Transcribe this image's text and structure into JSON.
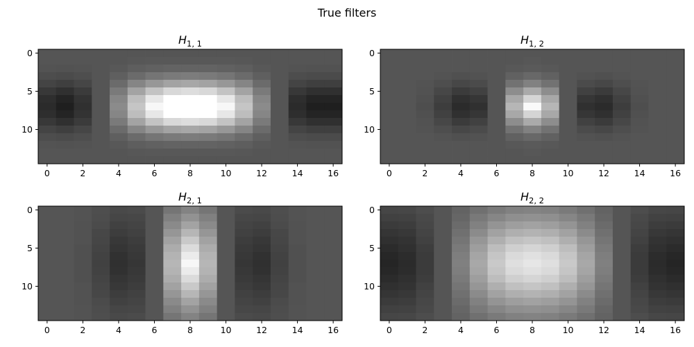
{
  "figure": {
    "title": "True filters"
  },
  "colormap": {
    "name": "gray",
    "low": "#000000",
    "high": "#ffffff"
  },
  "chart_data": [
    {
      "type": "heatmap",
      "title_base": "H",
      "title_sub": "1, 1",
      "xlim": [
        -0.5,
        16.5
      ],
      "ylim": [
        14.5,
        -0.5
      ],
      "xticks": [
        0,
        2,
        4,
        6,
        8,
        10,
        12,
        14,
        16
      ],
      "yticks": [
        0,
        5,
        10
      ],
      "vrange": [
        -0.5,
        1.0
      ],
      "values": [
        [
          0,
          0,
          0,
          0,
          0,
          0,
          0,
          0,
          0,
          0,
          0,
          0,
          0,
          0,
          0,
          0,
          0
        ],
        [
          0,
          0,
          0,
          0,
          0,
          0.01,
          0.02,
          0.02,
          0.02,
          0.02,
          0.02,
          0.01,
          0,
          0,
          0,
          0,
          0
        ],
        [
          -0.01,
          -0.02,
          -0.01,
          0,
          0.02,
          0.05,
          0.07,
          0.08,
          0.08,
          0.08,
          0.07,
          0.05,
          0.02,
          0,
          -0.01,
          -0.02,
          -0.02
        ],
        [
          -0.05,
          -0.06,
          -0.04,
          0,
          0.06,
          0.13,
          0.19,
          0.22,
          0.23,
          0.22,
          0.19,
          0.13,
          0.06,
          0,
          -0.05,
          -0.06,
          -0.06
        ],
        [
          -0.1,
          -0.13,
          -0.09,
          0,
          0.13,
          0.28,
          0.39,
          0.46,
          0.48,
          0.46,
          0.39,
          0.28,
          0.13,
          0,
          -0.1,
          -0.13,
          -0.13
        ],
        [
          -0.17,
          -0.22,
          -0.15,
          0,
          0.22,
          0.46,
          0.65,
          0.77,
          0.8,
          0.77,
          0.65,
          0.46,
          0.22,
          0,
          -0.17,
          -0.22,
          -0.22
        ],
        [
          -0.23,
          -0.29,
          -0.2,
          0,
          0.29,
          0.61,
          0.86,
          1.0,
          1.0,
          1.0,
          0.86,
          0.61,
          0.29,
          0,
          -0.23,
          -0.29,
          -0.29
        ],
        [
          -0.25,
          -0.32,
          -0.22,
          0,
          0.32,
          0.66,
          0.95,
          1.0,
          1.0,
          1.0,
          0.95,
          0.66,
          0.32,
          0,
          -0.25,
          -0.32,
          -0.32
        ],
        [
          -0.23,
          -0.29,
          -0.2,
          0,
          0.29,
          0.61,
          0.86,
          1.0,
          1.0,
          1.0,
          0.86,
          0.61,
          0.29,
          0,
          -0.23,
          -0.29,
          -0.29
        ],
        [
          -0.17,
          -0.22,
          -0.15,
          0,
          0.22,
          0.46,
          0.65,
          0.77,
          0.8,
          0.77,
          0.65,
          0.46,
          0.22,
          0,
          -0.17,
          -0.22,
          -0.22
        ],
        [
          -0.1,
          -0.13,
          -0.09,
          0,
          0.13,
          0.28,
          0.39,
          0.46,
          0.48,
          0.46,
          0.39,
          0.28,
          0.13,
          0,
          -0.1,
          -0.13,
          -0.13
        ],
        [
          -0.05,
          -0.06,
          -0.04,
          0,
          0.06,
          0.13,
          0.19,
          0.22,
          0.23,
          0.22,
          0.19,
          0.13,
          0.06,
          0,
          -0.05,
          -0.06,
          -0.06
        ],
        [
          -0.01,
          -0.02,
          -0.01,
          0,
          0.02,
          0.05,
          0.07,
          0.08,
          0.08,
          0.08,
          0.07,
          0.05,
          0.02,
          0,
          -0.01,
          -0.02,
          -0.02
        ],
        [
          0,
          0,
          0,
          0,
          0,
          0.01,
          0.02,
          0.02,
          0.02,
          0.02,
          0.02,
          0.01,
          0,
          0,
          0,
          0,
          0
        ],
        [
          0,
          0,
          0,
          0,
          0,
          0,
          0,
          0,
          0,
          0,
          0,
          0,
          0,
          0,
          0,
          0,
          0
        ]
      ]
    },
    {
      "type": "heatmap",
      "title_base": "H",
      "title_sub": "1, 2",
      "xlim": [
        -0.5,
        16.5
      ],
      "ylim": [
        14.5,
        -0.5
      ],
      "xticks": [
        0,
        2,
        4,
        6,
        8,
        10,
        12,
        14,
        16
      ],
      "yticks": [
        0,
        5,
        10
      ],
      "vrange": [
        -0.5,
        1.0
      ],
      "values": [
        [
          0,
          0,
          0,
          0,
          0,
          0,
          0,
          0,
          0,
          0,
          0,
          0,
          0,
          0,
          0,
          0,
          0
        ],
        [
          0,
          0,
          0,
          0,
          0,
          0,
          0,
          0,
          0.01,
          0,
          0,
          0,
          0,
          0,
          0,
          0,
          0
        ],
        [
          0,
          0,
          0,
          0,
          0,
          0,
          0,
          0.02,
          0.03,
          0.02,
          0,
          0,
          0,
          0,
          0,
          0,
          0
        ],
        [
          0,
          0,
          0,
          -0.01,
          -0.03,
          -0.02,
          0,
          0.07,
          0.11,
          0.07,
          0,
          -0.02,
          -0.03,
          -0.01,
          0,
          0,
          0
        ],
        [
          0,
          0,
          -0.01,
          -0.04,
          -0.08,
          -0.06,
          0,
          0.17,
          0.26,
          0.17,
          0,
          -0.06,
          -0.08,
          -0.04,
          -0.01,
          0,
          0
        ],
        [
          0,
          0,
          -0.02,
          -0.08,
          -0.15,
          -0.12,
          0,
          0.33,
          0.5,
          0.33,
          0,
          -0.12,
          -0.15,
          -0.08,
          -0.02,
          0,
          0
        ],
        [
          0,
          0,
          -0.03,
          -0.12,
          -0.22,
          -0.18,
          0,
          0.49,
          0.75,
          0.49,
          0,
          -0.18,
          -0.22,
          -0.12,
          -0.03,
          0,
          0
        ],
        [
          0,
          0,
          -0.04,
          -0.14,
          -0.25,
          -0.22,
          0,
          0.57,
          0.97,
          0.57,
          0,
          -0.22,
          -0.25,
          -0.14,
          -0.04,
          0,
          0
        ],
        [
          0,
          0,
          -0.03,
          -0.12,
          -0.22,
          -0.18,
          0,
          0.49,
          0.75,
          0.49,
          0,
          -0.18,
          -0.22,
          -0.12,
          -0.03,
          0,
          0
        ],
        [
          0,
          0,
          -0.02,
          -0.08,
          -0.15,
          -0.12,
          0,
          0.33,
          0.5,
          0.33,
          0,
          -0.12,
          -0.15,
          -0.08,
          -0.02,
          0,
          0
        ],
        [
          0,
          0,
          -0.01,
          -0.04,
          -0.08,
          -0.06,
          0,
          0.17,
          0.26,
          0.17,
          0,
          -0.06,
          -0.08,
          -0.04,
          -0.01,
          0,
          0
        ],
        [
          0,
          0,
          0,
          -0.01,
          -0.03,
          -0.02,
          0,
          0.07,
          0.11,
          0.07,
          0,
          -0.02,
          -0.03,
          -0.01,
          0,
          0,
          0
        ],
        [
          0,
          0,
          0,
          0,
          0,
          0,
          0,
          0.02,
          0.03,
          0.02,
          0,
          0,
          0,
          0,
          0,
          0,
          0
        ],
        [
          0,
          0,
          0,
          0,
          0,
          0,
          0,
          0,
          0.01,
          0,
          0,
          0,
          0,
          0,
          0,
          0,
          0
        ],
        [
          0,
          0,
          0,
          0,
          0,
          0,
          0,
          0,
          0,
          0,
          0,
          0,
          0,
          0,
          0,
          0,
          0
        ]
      ]
    },
    {
      "type": "heatmap",
      "title_base": "H",
      "title_sub": "2, 1",
      "xlim": [
        -0.5,
        16.5
      ],
      "ylim": [
        14.5,
        -0.5
      ],
      "xticks": [
        0,
        2,
        4,
        6,
        8,
        10,
        12,
        14,
        16
      ],
      "yticks": [
        0,
        5,
        10
      ],
      "vrange": [
        -0.5,
        1.0
      ],
      "values": [
        [
          0,
          0,
          -0.01,
          -0.04,
          -0.07,
          -0.06,
          0,
          0.19,
          0.27,
          0.19,
          0,
          -0.06,
          -0.07,
          -0.04,
          -0.01,
          0,
          0
        ],
        [
          0,
          0,
          -0.01,
          -0.05,
          -0.09,
          -0.08,
          0,
          0.25,
          0.36,
          0.25,
          0,
          -0.08,
          -0.09,
          -0.05,
          -0.01,
          0,
          0
        ],
        [
          0,
          0,
          -0.02,
          -0.06,
          -0.12,
          -0.1,
          0,
          0.31,
          0.46,
          0.31,
          0,
          -0.1,
          -0.12,
          -0.06,
          -0.02,
          0,
          0
        ],
        [
          0,
          0,
          -0.02,
          -0.08,
          -0.14,
          -0.12,
          0,
          0.38,
          0.57,
          0.38,
          0,
          -0.12,
          -0.14,
          -0.08,
          -0.02,
          0,
          0
        ],
        [
          0,
          0,
          -0.02,
          -0.09,
          -0.17,
          -0.14,
          0,
          0.45,
          0.68,
          0.45,
          0,
          -0.14,
          -0.17,
          -0.09,
          -0.02,
          0,
          0
        ],
        [
          0,
          0,
          -0.03,
          -0.1,
          -0.19,
          -0.16,
          0,
          0.51,
          0.79,
          0.51,
          0,
          -0.16,
          -0.19,
          -0.1,
          -0.03,
          0,
          0
        ],
        [
          0,
          0,
          -0.03,
          -0.11,
          -0.21,
          -0.17,
          0,
          0.55,
          0.88,
          0.55,
          0,
          -0.17,
          -0.21,
          -0.11,
          -0.03,
          0,
          0
        ],
        [
          0,
          0,
          -0.03,
          -0.12,
          -0.22,
          -0.18,
          0,
          0.57,
          0.95,
          0.57,
          0,
          -0.18,
          -0.22,
          -0.12,
          -0.03,
          0,
          0
        ],
        [
          0,
          0,
          -0.03,
          -0.11,
          -0.21,
          -0.17,
          0,
          0.55,
          0.88,
          0.55,
          0,
          -0.17,
          -0.21,
          -0.11,
          -0.03,
          0,
          0
        ],
        [
          0,
          0,
          -0.03,
          -0.1,
          -0.19,
          -0.16,
          0,
          0.51,
          0.79,
          0.51,
          0,
          -0.16,
          -0.19,
          -0.1,
          -0.03,
          0,
          0
        ],
        [
          0,
          0,
          -0.02,
          -0.09,
          -0.17,
          -0.14,
          0,
          0.45,
          0.68,
          0.45,
          0,
          -0.14,
          -0.17,
          -0.09,
          -0.02,
          0,
          0
        ],
        [
          0,
          0,
          -0.02,
          -0.08,
          -0.14,
          -0.12,
          0,
          0.38,
          0.57,
          0.38,
          0,
          -0.12,
          -0.14,
          -0.08,
          -0.02,
          0,
          0
        ],
        [
          0,
          0,
          -0.02,
          -0.06,
          -0.12,
          -0.1,
          0,
          0.31,
          0.46,
          0.31,
          0,
          -0.1,
          -0.12,
          -0.06,
          -0.02,
          0,
          0
        ],
        [
          0,
          0,
          -0.01,
          -0.05,
          -0.09,
          -0.08,
          0,
          0.25,
          0.36,
          0.25,
          0,
          -0.08,
          -0.09,
          -0.05,
          -0.01,
          0,
          0
        ],
        [
          0,
          0,
          -0.01,
          -0.04,
          -0.07,
          -0.06,
          0,
          0.19,
          0.27,
          0.19,
          0,
          -0.06,
          -0.07,
          -0.04,
          -0.01,
          0,
          0
        ]
      ]
    },
    {
      "type": "heatmap",
      "title_base": "H",
      "title_sub": "2, 2",
      "xlim": [
        -0.5,
        16.5
      ],
      "ylim": [
        14.5,
        -0.5
      ],
      "xticks": [
        0,
        2,
        4,
        6,
        8,
        10,
        12,
        14,
        16
      ],
      "yticks": [
        0,
        5,
        10
      ],
      "vrange": [
        -0.5,
        1.0
      ],
      "values": [
        [
          -0.09,
          -0.08,
          -0.05,
          0,
          0.08,
          0.16,
          0.22,
          0.26,
          0.27,
          0.26,
          0.22,
          0.16,
          0.08,
          0,
          -0.05,
          -0.08,
          -0.09
        ],
        [
          -0.12,
          -0.11,
          -0.07,
          0,
          0.1,
          0.21,
          0.29,
          0.34,
          0.35,
          0.34,
          0.29,
          0.21,
          0.1,
          0,
          -0.07,
          -0.11,
          -0.12
        ],
        [
          -0.15,
          -0.14,
          -0.08,
          0,
          0.13,
          0.26,
          0.37,
          0.43,
          0.45,
          0.43,
          0.37,
          0.26,
          0.13,
          0,
          -0.08,
          -0.14,
          -0.15
        ],
        [
          -0.19,
          -0.17,
          -0.1,
          0,
          0.16,
          0.32,
          0.45,
          0.53,
          0.55,
          0.53,
          0.45,
          0.32,
          0.16,
          0,
          -0.1,
          -0.17,
          -0.19
        ],
        [
          -0.22,
          -0.2,
          -0.12,
          0,
          0.19,
          0.38,
          0.53,
          0.63,
          0.66,
          0.63,
          0.53,
          0.38,
          0.19,
          0,
          -0.12,
          -0.2,
          -0.22
        ],
        [
          -0.25,
          -0.22,
          -0.14,
          0,
          0.22,
          0.43,
          0.61,
          0.72,
          0.75,
          0.72,
          0.61,
          0.43,
          0.22,
          0,
          -0.14,
          -0.22,
          -0.25
        ],
        [
          -0.27,
          -0.24,
          -0.15,
          0,
          0.24,
          0.47,
          0.66,
          0.78,
          0.82,
          0.78,
          0.66,
          0.47,
          0.24,
          0,
          -0.15,
          -0.24,
          -0.27
        ],
        [
          -0.28,
          -0.25,
          -0.15,
          0,
          0.25,
          0.49,
          0.68,
          0.81,
          0.85,
          0.81,
          0.68,
          0.49,
          0.25,
          0,
          -0.15,
          -0.25,
          -0.28
        ],
        [
          -0.27,
          -0.24,
          -0.15,
          0,
          0.24,
          0.47,
          0.66,
          0.78,
          0.82,
          0.78,
          0.66,
          0.47,
          0.24,
          0,
          -0.15,
          -0.24,
          -0.27
        ],
        [
          -0.25,
          -0.22,
          -0.14,
          0,
          0.22,
          0.43,
          0.61,
          0.72,
          0.75,
          0.72,
          0.61,
          0.43,
          0.22,
          0,
          -0.14,
          -0.22,
          -0.25
        ],
        [
          -0.22,
          -0.2,
          -0.12,
          0,
          0.19,
          0.38,
          0.53,
          0.63,
          0.66,
          0.63,
          0.53,
          0.38,
          0.19,
          0,
          -0.12,
          -0.2,
          -0.22
        ],
        [
          -0.19,
          -0.17,
          -0.1,
          0,
          0.16,
          0.32,
          0.45,
          0.53,
          0.55,
          0.53,
          0.45,
          0.32,
          0.16,
          0,
          -0.1,
          -0.17,
          -0.19
        ],
        [
          -0.15,
          -0.14,
          -0.08,
          0,
          0.13,
          0.26,
          0.37,
          0.43,
          0.45,
          0.43,
          0.37,
          0.26,
          0.13,
          0,
          -0.08,
          -0.14,
          -0.15
        ],
        [
          -0.12,
          -0.11,
          -0.07,
          0,
          0.1,
          0.21,
          0.29,
          0.34,
          0.35,
          0.34,
          0.29,
          0.21,
          0.1,
          0,
          -0.07,
          -0.11,
          -0.12
        ],
        [
          -0.09,
          -0.08,
          -0.05,
          0,
          0.08,
          0.16,
          0.22,
          0.26,
          0.27,
          0.26,
          0.22,
          0.16,
          0.08,
          0,
          -0.05,
          -0.08,
          -0.09
        ]
      ]
    }
  ]
}
